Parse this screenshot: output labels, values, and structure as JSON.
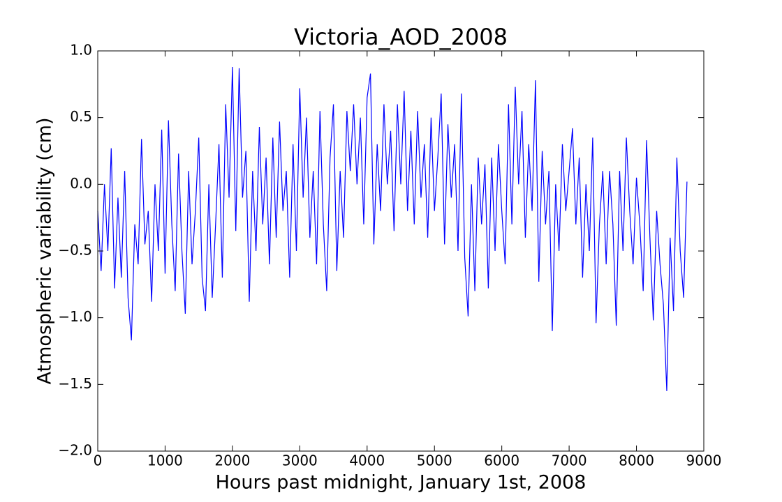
{
  "chart_data": {
    "type": "line",
    "title": "Victoria_AOD_2008",
    "xlabel": "Hours past midnight, January 1st, 2008",
    "ylabel": "Atmospheric variability (cm)",
    "xlim": [
      0,
      9000
    ],
    "ylim": [
      -2,
      1
    ],
    "xticks": [
      0,
      1000,
      2000,
      3000,
      4000,
      5000,
      6000,
      7000,
      8000,
      9000
    ],
    "yticks": [
      {
        "value": -2,
        "label": "−2.0"
      },
      {
        "value": -1.5,
        "label": "−1.5"
      },
      {
        "value": -1,
        "label": "−1.0"
      },
      {
        "value": -0.5,
        "label": "−0.5"
      },
      {
        "value": 0,
        "label": "0.0"
      },
      {
        "value": 0.5,
        "label": "0.5"
      },
      {
        "value": 1,
        "label": "1.0"
      }
    ],
    "grid": false,
    "x": [
      0,
      50,
      100,
      150,
      200,
      250,
      300,
      350,
      400,
      450,
      500,
      550,
      600,
      650,
      700,
      750,
      800,
      850,
      900,
      950,
      1000,
      1050,
      1100,
      1150,
      1200,
      1250,
      1300,
      1350,
      1400,
      1450,
      1500,
      1550,
      1600,
      1650,
      1700,
      1750,
      1800,
      1850,
      1900,
      1950,
      2000,
      2050,
      2100,
      2150,
      2200,
      2250,
      2300,
      2350,
      2400,
      2450,
      2500,
      2550,
      2600,
      2650,
      2700,
      2750,
      2800,
      2850,
      2900,
      2950,
      3000,
      3050,
      3100,
      3150,
      3200,
      3250,
      3300,
      3350,
      3400,
      3450,
      3500,
      3550,
      3600,
      3650,
      3700,
      3750,
      3800,
      3850,
      3900,
      3950,
      4000,
      4050,
      4100,
      4150,
      4200,
      4250,
      4300,
      4350,
      4400,
      4450,
      4500,
      4550,
      4600,
      4650,
      4700,
      4750,
      4800,
      4850,
      4900,
      4950,
      5000,
      5050,
      5100,
      5150,
      5200,
      5250,
      5300,
      5350,
      5400,
      5450,
      5500,
      5550,
      5600,
      5650,
      5700,
      5750,
      5800,
      5850,
      5900,
      5950,
      6000,
      6050,
      6100,
      6150,
      6200,
      6250,
      6300,
      6350,
      6400,
      6450,
      6500,
      6550,
      6600,
      6650,
      6700,
      6750,
      6800,
      6850,
      6900,
      6950,
      7000,
      7050,
      7100,
      7150,
      7200,
      7250,
      7300,
      7350,
      7400,
      7450,
      7500,
      7550,
      7600,
      7650,
      7700,
      7750,
      7800,
      7850,
      7900,
      7950,
      8000,
      8050,
      8100,
      8150,
      8200,
      8250,
      8300,
      8350,
      8400,
      8450,
      8500,
      8550,
      8600,
      8650,
      8700,
      8750
    ],
    "series": [
      {
        "color": "#0000ff",
        "values": [
          -0.2,
          -0.65,
          0.0,
          -0.5,
          0.27,
          -0.78,
          -0.1,
          -0.7,
          0.1,
          -0.85,
          -1.17,
          -0.3,
          -0.6,
          0.34,
          -0.45,
          -0.2,
          -0.88,
          0.0,
          -0.5,
          0.41,
          -0.67,
          0.48,
          -0.3,
          -0.8,
          0.23,
          -0.5,
          -0.97,
          0.1,
          -0.6,
          -0.2,
          0.35,
          -0.7,
          -0.95,
          0.0,
          -0.85,
          -0.3,
          0.3,
          -0.7,
          0.6,
          -0.1,
          0.88,
          -0.35,
          0.87,
          -0.1,
          0.25,
          -0.88,
          0.1,
          -0.5,
          0.43,
          -0.3,
          0.2,
          -0.6,
          0.35,
          -0.4,
          0.47,
          -0.2,
          0.1,
          -0.7,
          0.3,
          -0.5,
          0.72,
          -0.1,
          0.5,
          -0.4,
          0.1,
          -0.6,
          0.55,
          -0.3,
          -0.8,
          0.2,
          0.6,
          -0.65,
          0.1,
          -0.4,
          0.55,
          0.1,
          0.6,
          0.0,
          0.5,
          -0.3,
          0.65,
          0.83,
          -0.45,
          0.3,
          -0.2,
          0.6,
          0.0,
          0.4,
          -0.35,
          0.6,
          0.0,
          0.7,
          -0.2,
          0.4,
          -0.3,
          0.55,
          -0.1,
          0.3,
          -0.4,
          0.5,
          -0.2,
          0.2,
          0.68,
          -0.45,
          0.45,
          -0.1,
          0.3,
          -0.5,
          0.68,
          -0.55,
          -0.99,
          0.0,
          -0.8,
          0.2,
          -0.3,
          0.15,
          -0.78,
          0.2,
          -0.5,
          0.3,
          -0.2,
          -0.6,
          0.6,
          -0.3,
          0.73,
          0.0,
          0.55,
          -0.4,
          0.3,
          -0.2,
          0.78,
          -0.73,
          0.25,
          -0.3,
          0.1,
          -1.1,
          0.0,
          -0.5,
          0.3,
          -0.2,
          0.1,
          0.42,
          -0.3,
          0.2,
          -0.7,
          0.0,
          -0.5,
          0.35,
          -1.04,
          -0.3,
          0.1,
          -0.6,
          0.1,
          -0.3,
          -1.06,
          0.1,
          -0.5,
          0.35,
          -0.2,
          -0.6,
          0.05,
          -0.3,
          -0.8,
          0.33,
          -0.4,
          -1.02,
          -0.2,
          -0.6,
          -0.9,
          -1.55,
          -0.4,
          -0.95,
          0.2,
          -0.5,
          -0.85,
          0.02
        ]
      }
    ]
  }
}
